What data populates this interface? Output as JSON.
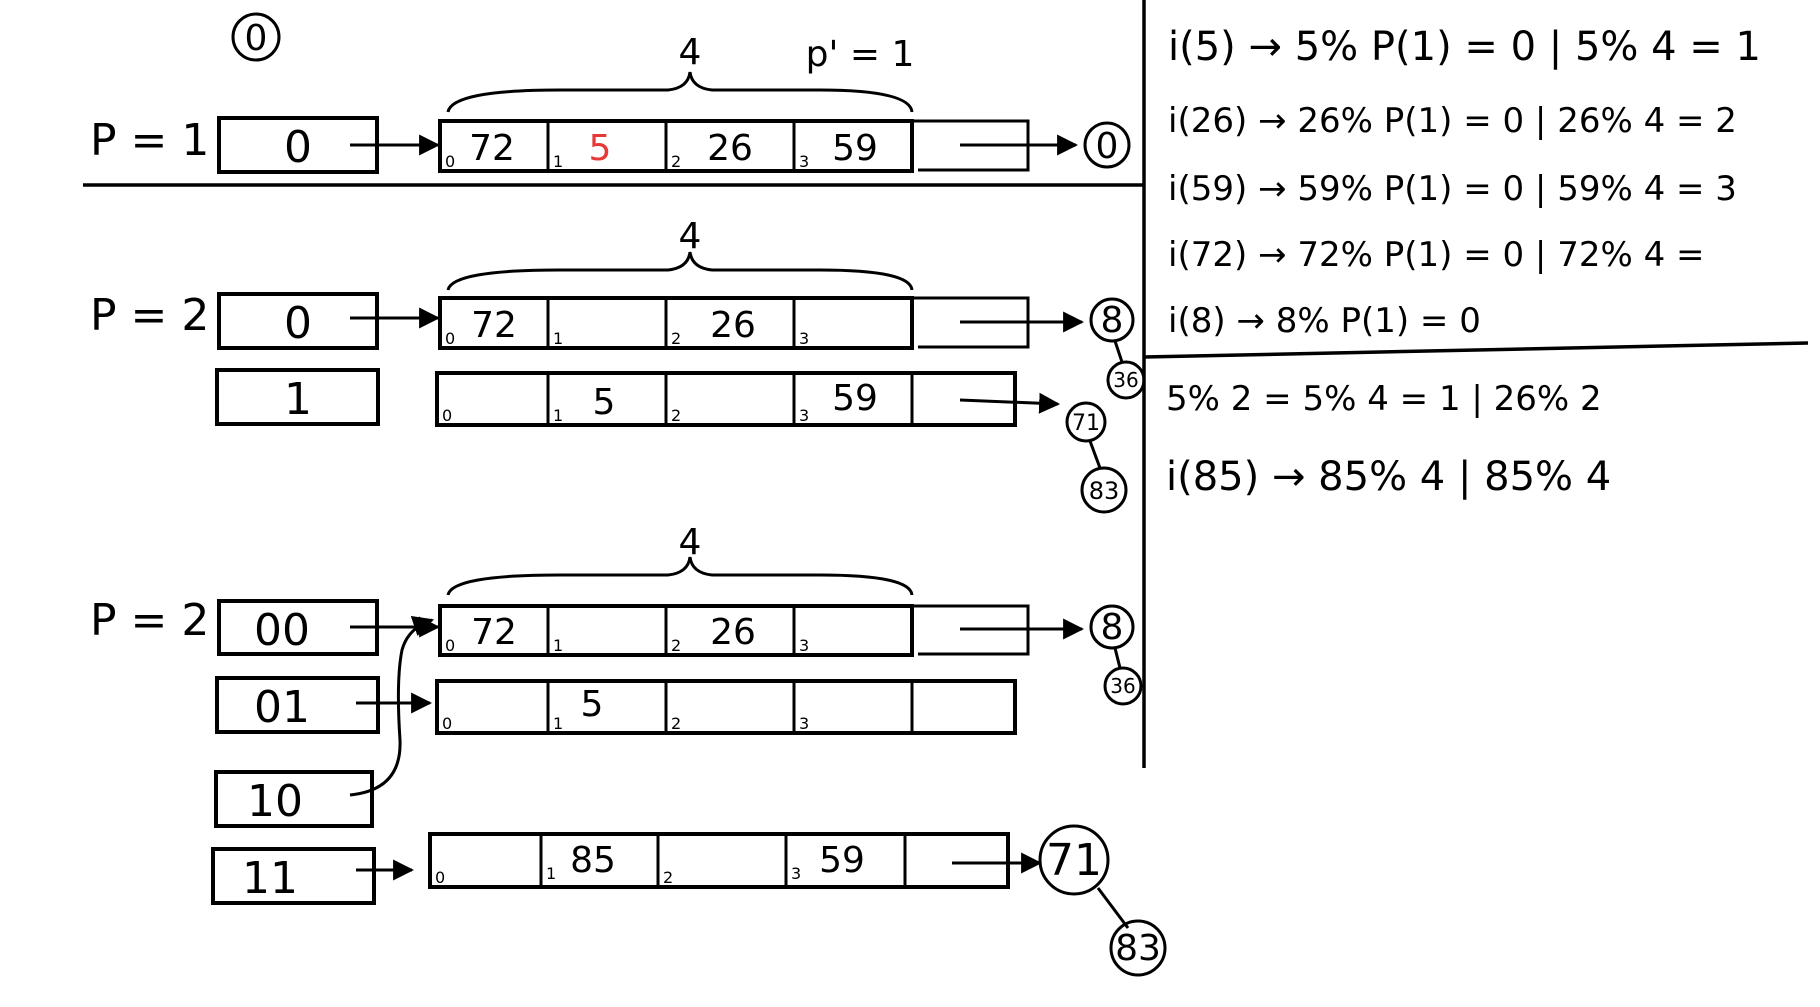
{
  "marker": "0",
  "top_labels": {
    "bucket_size": "4",
    "p_prime": "p' = 1"
  },
  "section1": {
    "p_label": "P = 1",
    "dir": [
      "0"
    ],
    "bucket": {
      "indices": [
        "0",
        "1",
        "2",
        "3"
      ],
      "values": [
        "72",
        "5",
        "26",
        "59"
      ],
      "highlight_index": 1,
      "highlight_color": "#e53935"
    },
    "overflow": "0"
  },
  "section2": {
    "p_label": "P = 2",
    "size_label": "4",
    "dir": [
      "0",
      "1"
    ],
    "bucket_a": {
      "indices": [
        "0",
        "1",
        "2",
        "3"
      ],
      "values": [
        "72",
        "",
        "26",
        ""
      ]
    },
    "bucket_b": {
      "indices": [
        "0",
        "1",
        "2",
        "3"
      ],
      "values": [
        "",
        "5",
        "",
        "59"
      ]
    },
    "overflow_a": [
      "8",
      "36"
    ],
    "overflow_b": [
      "71",
      "83"
    ]
  },
  "section3": {
    "p_label": "P = 2",
    "size_label": "4",
    "dir": [
      "00",
      "01",
      "10",
      "11"
    ],
    "bucket_a": {
      "indices": [
        "0",
        "1",
        "2",
        "3"
      ],
      "values": [
        "72",
        "",
        "26",
        ""
      ]
    },
    "bucket_b": {
      "indices": [
        "0",
        "1",
        "2",
        "3"
      ],
      "values": [
        "",
        "5",
        "",
        ""
      ]
    },
    "bucket_c": {
      "indices": [
        "0",
        "1",
        "2",
        "3"
      ],
      "values": [
        "",
        "85",
        "",
        "59"
      ]
    },
    "overflow_a": [
      "8",
      "36"
    ],
    "overflow_c": [
      "71",
      "83"
    ]
  },
  "notes": {
    "top": [
      "i(5) → 5% P(1) = 0 | 5% 4 = 1",
      "i(26) → 26% P(1) = 0 | 26% 4 = 2",
      "i(59) → 59% P(1) = 0 | 59% 4 = 3",
      "i(72) → 72% P(1) = 0 | 72% 4 =",
      "i(8) → 8% P(1) = 0"
    ],
    "bottom": [
      "5% 2 = 5% 4 = 1 | 26% 2",
      "i(85) → 85% 4 | 85% 4"
    ]
  }
}
